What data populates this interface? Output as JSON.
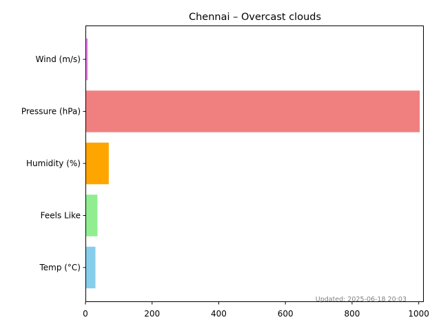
{
  "chart_data": {
    "type": "bar",
    "orientation": "horizontal",
    "title": "Chennai – Overcast clouds",
    "categories": [
      "Temp (°C)",
      "Feels Like",
      "Humidity (%)",
      "Pressure (hPa)",
      "Wind (m/s)"
    ],
    "values": [
      30,
      36,
      70,
      1003,
      7
    ],
    "colors": [
      "#87ceeb",
      "#90ee90",
      "#ffa500",
      "#f08080",
      "#ee82ee"
    ],
    "xlim": [
      0,
      1000
    ],
    "xticks": [
      "0",
      "200",
      "400",
      "600",
      "800",
      "1000"
    ],
    "xlabel": "",
    "ylabel": "",
    "grid": false,
    "annotation": "Updated: 2025-06-18 20:03"
  }
}
